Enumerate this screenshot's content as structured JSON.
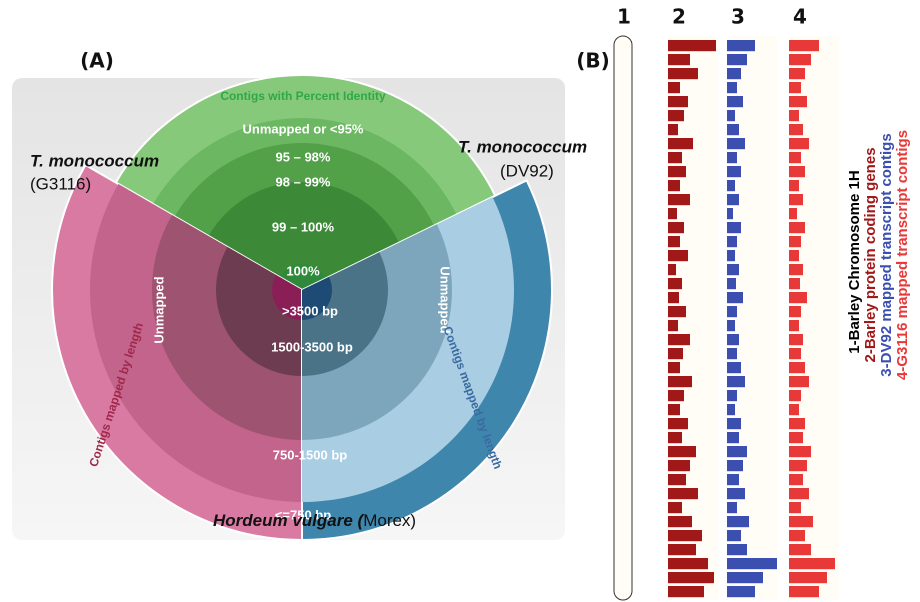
{
  "panel_a": {
    "label": "(A)",
    "ring_title": "Contigs with Percent Identity",
    "identity_labels": [
      "Unmapped or <95%",
      "95 – 98%",
      "98 – 99%",
      "99 – 100%",
      "100%"
    ],
    "length_labels": [
      ">3500 bp",
      "1500-3500 bp",
      "750-1500 bp",
      "<=750 bp"
    ],
    "unmapped_left": "Unmapped",
    "unmapped_right": "Unmapped",
    "length_title_left": "Contigs mapped by length",
    "length_title_right": "Contigs mapped by length",
    "species_left": "T. monococcum",
    "accession_left": "(G3116)",
    "species_right": "T. monococcum",
    "accession_right": "(DV92)",
    "species_bottom": "Hordeum vulgare (",
    "accession_bottom": "Morex)"
  },
  "panel_b": {
    "label": "(B)",
    "track_1": {
      "number": "1",
      "legend": "1-Barley Chromosome 1H",
      "color": "#000000"
    },
    "tracks": [
      {
        "number": "2",
        "legend": "2-Barley protein coding genes",
        "color": "#a01818",
        "values": [
          48,
          22,
          30,
          12,
          20,
          16,
          10,
          25,
          14,
          18,
          12,
          22,
          9,
          16,
          12,
          20,
          8,
          14,
          11,
          18,
          10,
          22,
          15,
          12,
          24,
          16,
          12,
          20,
          14,
          28,
          22,
          18,
          30,
          14,
          24,
          34,
          28,
          40,
          46,
          36
        ]
      },
      {
        "number": "3",
        "legend": "3-DV92 mapped transcript contigs",
        "color": "#3a4fb0",
        "values": [
          28,
          20,
          14,
          10,
          16,
          8,
          12,
          18,
          10,
          14,
          8,
          12,
          6,
          14,
          10,
          8,
          12,
          9,
          16,
          10,
          8,
          12,
          10,
          14,
          18,
          10,
          8,
          14,
          12,
          20,
          16,
          12,
          18,
          10,
          22,
          14,
          20,
          50,
          36,
          28
        ]
      },
      {
        "number": "4",
        "legend": "4-G3116 mapped transcript contigs",
        "color": "#e83838",
        "values": [
          30,
          22,
          16,
          12,
          18,
          10,
          14,
          20,
          12,
          16,
          10,
          14,
          8,
          16,
          12,
          10,
          14,
          11,
          18,
          12,
          10,
          14,
          12,
          16,
          20,
          12,
          10,
          16,
          14,
          22,
          18,
          14,
          20,
          12,
          24,
          16,
          22,
          46,
          38,
          30
        ]
      }
    ]
  }
}
